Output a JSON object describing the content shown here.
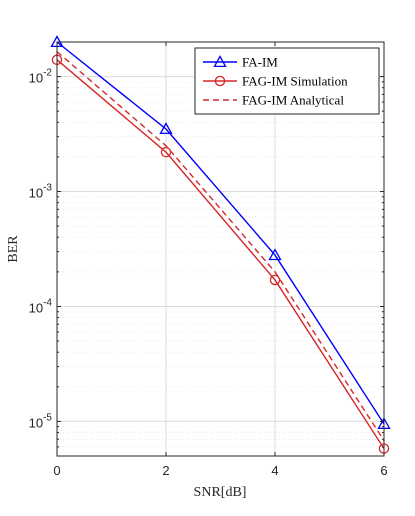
{
  "chart_data": {
    "type": "line",
    "xlabel": "SNR[dB]",
    "ylabel": "BER",
    "xlim": [
      0,
      6
    ],
    "ylim": [
      5e-06,
      0.02
    ],
    "yscale": "log",
    "grid": true,
    "legend_position": "top-right",
    "x_ticks": [
      0,
      2,
      4,
      6
    ],
    "x_tick_labels": [
      "0",
      "2",
      "4",
      "6"
    ],
    "y_ticks": [
      1e-05,
      0.0001,
      0.001,
      0.01
    ],
    "y_tick_labels": [
      {
        "base": "10",
        "exp": "-5"
      },
      {
        "base": "10",
        "exp": "-4"
      },
      {
        "base": "10",
        "exp": "-3"
      },
      {
        "base": "10",
        "exp": "-2"
      }
    ],
    "series": [
      {
        "name": "FA-IM",
        "color": "#0000ff",
        "dash": "solid",
        "marker": "triangle",
        "x": [
          0,
          2,
          4,
          6
        ],
        "y": [
          0.02,
          0.0035,
          0.00028,
          9.5e-06
        ]
      },
      {
        "name": "FAG-IM Simulation",
        "color": "#d62728",
        "dash": "solid",
        "marker": "circle",
        "x": [
          0,
          2,
          4,
          6
        ],
        "y": [
          0.014,
          0.0022,
          0.00017,
          5.8e-06
        ]
      },
      {
        "name": "FAG-IM Analytical",
        "color": "#d62728",
        "dash": "dashed",
        "marker": "none",
        "x": [
          0,
          2,
          4,
          6
        ],
        "y": [
          0.0165,
          0.0025,
          0.0002,
          6.8e-06
        ]
      }
    ]
  }
}
